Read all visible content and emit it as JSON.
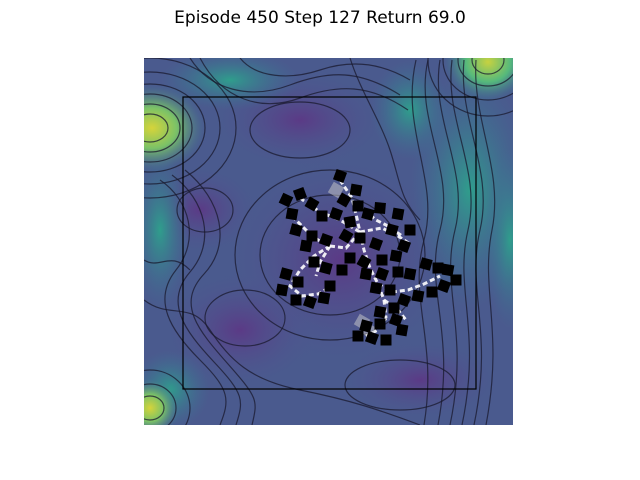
{
  "episode_title": "Episode 450 Step 127 Return 69.0",
  "episode": 450,
  "step": 127,
  "return": 69.0,
  "colors": {
    "field_low": "#5a3f86",
    "field_mid": "#3e6f95",
    "field_high": "#52b87a",
    "field_peak": "#c9d43f",
    "contour": "#1a1a2e",
    "arena_border": "#000000",
    "body_block": "#000000",
    "body_link": "#ffffff"
  },
  "icons": {
    "creature": "articulated-body-icon",
    "block": "black-square-block"
  }
}
